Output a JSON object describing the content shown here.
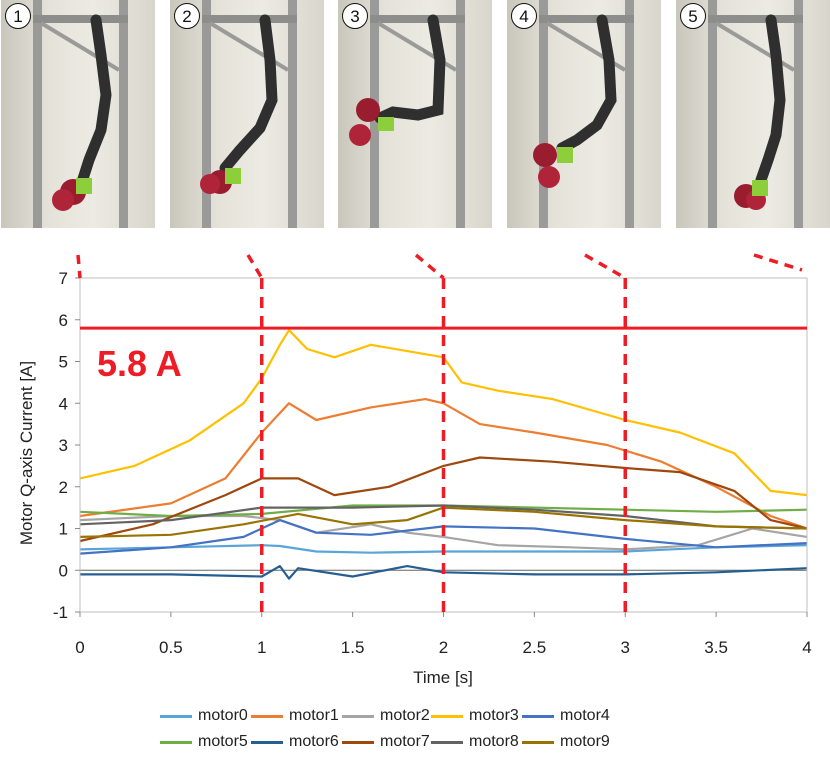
{
  "steps": [
    {
      "label": "1"
    },
    {
      "label": "2"
    },
    {
      "label": "3"
    },
    {
      "label": "4"
    },
    {
      "label": "5"
    }
  ],
  "chart_data": {
    "type": "line",
    "title": "",
    "xlabel": "Time [s]",
    "ylabel": "Motor Q-axis  Current [A]",
    "xlim": [
      0,
      4
    ],
    "ylim": [
      -1,
      7
    ],
    "xticks": [
      "0",
      "0.5",
      "1",
      "1.5",
      "2",
      "2.5",
      "3",
      "3.5",
      "4"
    ],
    "yticks": [
      "-1",
      "0",
      "1",
      "2",
      "3",
      "4",
      "5",
      "6",
      "7"
    ],
    "threshold": {
      "value": 5.8,
      "label": "5.8 A",
      "color": "#ee1c24"
    },
    "snapshot_times": [
      1,
      2,
      3
    ],
    "series": [
      {
        "name": "motor0",
        "color": "#5aa5d8",
        "x": [
          0,
          0.5,
          1,
          1.1,
          1.3,
          1.6,
          2,
          2.5,
          3,
          3.5,
          4
        ],
        "y": [
          0.5,
          0.55,
          0.6,
          0.58,
          0.45,
          0.42,
          0.45,
          0.45,
          0.45,
          0.55,
          0.6
        ]
      },
      {
        "name": "motor1",
        "color": "#ed7d31",
        "x": [
          0,
          0.5,
          0.8,
          1,
          1.15,
          1.3,
          1.6,
          1.9,
          2,
          2.2,
          2.5,
          2.9,
          3.2,
          3.5,
          3.8,
          4
        ],
        "y": [
          1.3,
          1.6,
          2.2,
          3.3,
          4.0,
          3.6,
          3.9,
          4.1,
          4.0,
          3.5,
          3.3,
          3.0,
          2.6,
          2.0,
          1.3,
          1.0
        ]
      },
      {
        "name": "motor2",
        "color": "#a5a5a5",
        "x": [
          0,
          0.5,
          0.9,
          1.1,
          1.3,
          1.6,
          1.8,
          2,
          2.3,
          2.7,
          3,
          3.4,
          3.7,
          4
        ],
        "y": [
          1.2,
          1.3,
          1.3,
          1.2,
          0.9,
          1.1,
          0.9,
          0.8,
          0.6,
          0.55,
          0.5,
          0.6,
          1.0,
          0.8
        ]
      },
      {
        "name": "motor3",
        "color": "#ffc000",
        "x": [
          0,
          0.3,
          0.6,
          0.9,
          1,
          1.1,
          1.15,
          1.25,
          1.4,
          1.6,
          1.8,
          2,
          2.1,
          2.3,
          2.6,
          3,
          3.3,
          3.6,
          3.8,
          4
        ],
        "y": [
          2.2,
          2.5,
          3.1,
          4.0,
          4.6,
          5.4,
          5.75,
          5.3,
          5.1,
          5.4,
          5.25,
          5.1,
          4.5,
          4.3,
          4.1,
          3.6,
          3.3,
          2.8,
          1.9,
          1.8
        ]
      },
      {
        "name": "motor4",
        "color": "#4472c4",
        "x": [
          0,
          0.5,
          0.9,
          1.1,
          1.3,
          1.6,
          2,
          2.5,
          3,
          3.5,
          4
        ],
        "y": [
          0.4,
          0.55,
          0.8,
          1.2,
          0.9,
          0.85,
          1.05,
          1.0,
          0.75,
          0.55,
          0.65
        ]
      },
      {
        "name": "motor5",
        "color": "#70ad47",
        "x": [
          0,
          0.5,
          1,
          1.5,
          2,
          2.5,
          3,
          3.5,
          4
        ],
        "y": [
          1.4,
          1.3,
          1.35,
          1.55,
          1.55,
          1.5,
          1.45,
          1.4,
          1.45
        ]
      },
      {
        "name": "motor6",
        "color": "#255e91",
        "x": [
          0,
          0.5,
          1,
          1.1,
          1.15,
          1.2,
          1.5,
          1.8,
          2,
          2.5,
          3,
          3.5,
          4
        ],
        "y": [
          -0.1,
          -0.1,
          -0.15,
          0.1,
          -0.2,
          0.05,
          -0.15,
          0.1,
          -0.05,
          -0.1,
          -0.1,
          -0.05,
          0.05
        ]
      },
      {
        "name": "motor7",
        "color": "#9e480e",
        "x": [
          0,
          0.4,
          0.8,
          1,
          1.2,
          1.4,
          1.7,
          2,
          2.2,
          2.6,
          3,
          3.3,
          3.6,
          3.8,
          4
        ],
        "y": [
          0.7,
          1.1,
          1.8,
          2.2,
          2.2,
          1.8,
          2.0,
          2.5,
          2.7,
          2.6,
          2.45,
          2.35,
          1.9,
          1.2,
          1.0
        ]
      },
      {
        "name": "motor8",
        "color": "#636363",
        "x": [
          0,
          0.5,
          1,
          1.5,
          2,
          2.5,
          3,
          3.5,
          4
        ],
        "y": [
          1.1,
          1.2,
          1.5,
          1.5,
          1.55,
          1.45,
          1.3,
          1.05,
          1.0
        ]
      },
      {
        "name": "motor9",
        "color": "#997300",
        "x": [
          0,
          0.5,
          0.9,
          1.2,
          1.5,
          1.8,
          2,
          2.5,
          3,
          3.5,
          4
        ],
        "y": [
          0.8,
          0.85,
          1.1,
          1.35,
          1.1,
          1.2,
          1.5,
          1.4,
          1.2,
          1.05,
          1.0
        ]
      }
    ]
  }
}
